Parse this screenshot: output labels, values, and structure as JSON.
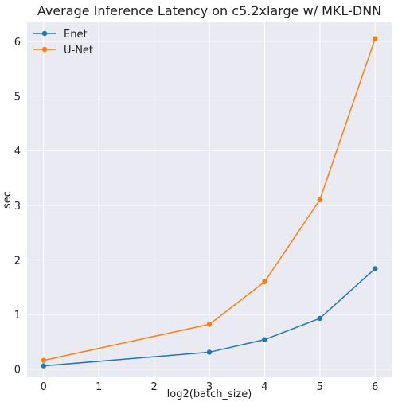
{
  "chart_data": {
    "type": "line",
    "title": "Average Inference Latency on c5.2xlarge w/ MKL-DNN",
    "xlabel": "log2(batch_size)",
    "ylabel": "sec",
    "x": [
      0,
      3,
      4,
      5,
      6
    ],
    "xticks": [
      0,
      1,
      2,
      3,
      4,
      5,
      6
    ],
    "yticks": [
      0,
      1,
      2,
      3,
      4,
      5,
      6
    ],
    "xlim": [
      -0.3,
      6.3
    ],
    "ylim": [
      -0.15,
      6.35
    ],
    "grid": true,
    "legend_position": "top-left",
    "series": [
      {
        "name": "Enet",
        "color": "#1f77b4",
        "values": [
          0.06,
          0.31,
          0.54,
          0.93,
          1.84
        ]
      },
      {
        "name": "U-Net",
        "color": "#ff7f0e",
        "values": [
          0.16,
          0.82,
          1.6,
          3.1,
          6.05
        ]
      }
    ]
  }
}
